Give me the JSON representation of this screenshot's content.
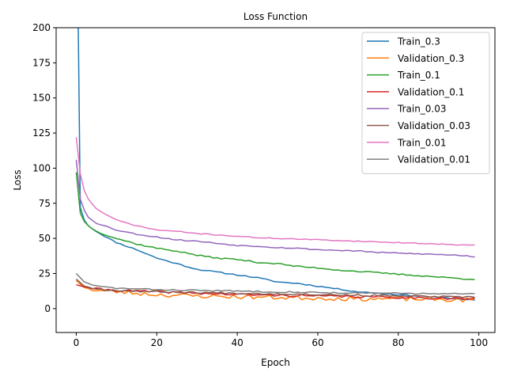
{
  "chart_data": {
    "type": "line",
    "title": "Loss Function",
    "xlabel": "Epoch",
    "ylabel": "Loss",
    "xlim": [
      -5,
      104
    ],
    "ylim": [
      -17,
      200
    ],
    "xticks": [
      0,
      20,
      40,
      60,
      80,
      100
    ],
    "yticks": [
      0,
      25,
      50,
      75,
      100,
      125,
      150,
      175,
      200
    ],
    "grid": false,
    "legend_position": "top-right",
    "x_start": 0,
    "x_end": 99,
    "series": [
      {
        "name": "Train_0.3",
        "color": "#1f77b4",
        "anchors": [
          [
            0,
            215
          ],
          [
            0.5,
            200
          ],
          [
            1,
            72
          ],
          [
            2,
            63
          ],
          [
            3,
            59
          ],
          [
            5,
            55
          ],
          [
            8,
            50
          ],
          [
            10,
            47
          ],
          [
            15,
            42
          ],
          [
            20,
            36
          ],
          [
            25,
            32
          ],
          [
            30,
            28
          ],
          [
            35,
            26
          ],
          [
            40,
            24
          ],
          [
            45,
            22
          ],
          [
            50,
            19
          ],
          [
            55,
            18
          ],
          [
            60,
            16
          ],
          [
            65,
            14
          ],
          [
            70,
            12
          ],
          [
            75,
            11
          ],
          [
            80,
            10
          ],
          [
            85,
            9
          ],
          [
            90,
            8
          ],
          [
            95,
            7
          ],
          [
            99,
            6
          ]
        ],
        "noise": 0.4,
        "seed": 11
      },
      {
        "name": "Validation_0.3",
        "color": "#ff7f0e",
        "anchors": [
          [
            0,
            20
          ],
          [
            2,
            15
          ],
          [
            5,
            13
          ],
          [
            10,
            12
          ],
          [
            20,
            10
          ],
          [
            30,
            9
          ],
          [
            40,
            8.5
          ],
          [
            50,
            8
          ],
          [
            60,
            7.5
          ],
          [
            70,
            7
          ],
          [
            80,
            7
          ],
          [
            90,
            6.5
          ],
          [
            99,
            6
          ]
        ],
        "noise": 1.6,
        "seed": 23
      },
      {
        "name": "Train_0.1",
        "color": "#2ca02c",
        "anchors": [
          [
            0,
            97
          ],
          [
            1,
            68
          ],
          [
            2,
            62
          ],
          [
            3,
            59
          ],
          [
            5,
            55
          ],
          [
            8,
            52
          ],
          [
            10,
            50
          ],
          [
            15,
            46
          ],
          [
            20,
            43
          ],
          [
            25,
            41
          ],
          [
            30,
            38
          ],
          [
            35,
            36
          ],
          [
            40,
            35
          ],
          [
            45,
            33
          ],
          [
            50,
            32
          ],
          [
            55,
            30
          ],
          [
            60,
            29
          ],
          [
            65,
            27.5
          ],
          [
            70,
            26.5
          ],
          [
            75,
            25.5
          ],
          [
            80,
            24.5
          ],
          [
            85,
            23.5
          ],
          [
            90,
            22.5
          ],
          [
            95,
            21.5
          ],
          [
            99,
            21
          ]
        ],
        "noise": 0.5,
        "seed": 37
      },
      {
        "name": "Validation_0.1",
        "color": "#d62728",
        "anchors": [
          [
            0,
            17
          ],
          [
            2,
            15.5
          ],
          [
            5,
            14
          ],
          [
            10,
            13
          ],
          [
            20,
            12
          ],
          [
            30,
            11
          ],
          [
            40,
            10
          ],
          [
            50,
            9.5
          ],
          [
            60,
            9
          ],
          [
            70,
            8.5
          ],
          [
            80,
            8
          ],
          [
            90,
            7.5
          ],
          [
            99,
            7
          ]
        ],
        "noise": 0.8,
        "seed": 41
      },
      {
        "name": "Train_0.03",
        "color": "#9467bd",
        "anchors": [
          [
            0,
            106
          ],
          [
            1,
            78
          ],
          [
            2,
            70
          ],
          [
            3,
            65
          ],
          [
            5,
            61
          ],
          [
            8,
            58
          ],
          [
            10,
            56
          ],
          [
            15,
            53
          ],
          [
            20,
            51
          ],
          [
            25,
            49
          ],
          [
            30,
            48
          ],
          [
            35,
            46.5
          ],
          [
            40,
            45
          ],
          [
            45,
            44.5
          ],
          [
            50,
            43.5
          ],
          [
            55,
            43
          ],
          [
            60,
            42
          ],
          [
            65,
            41.5
          ],
          [
            70,
            41
          ],
          [
            75,
            40
          ],
          [
            80,
            39.5
          ],
          [
            85,
            39
          ],
          [
            90,
            38.5
          ],
          [
            95,
            38
          ],
          [
            99,
            37
          ]
        ],
        "noise": 0.4,
        "seed": 53
      },
      {
        "name": "Validation_0.03",
        "color": "#8c564b",
        "anchors": [
          [
            0,
            21
          ],
          [
            2,
            16
          ],
          [
            5,
            14
          ],
          [
            10,
            13
          ],
          [
            20,
            12
          ],
          [
            30,
            11.5
          ],
          [
            40,
            11
          ],
          [
            50,
            10.5
          ],
          [
            60,
            10
          ],
          [
            70,
            9.5
          ],
          [
            80,
            9
          ],
          [
            90,
            8.5
          ],
          [
            99,
            8
          ]
        ],
        "noise": 0.6,
        "seed": 67
      },
      {
        "name": "Train_0.01",
        "color": "#e377c2",
        "anchors": [
          [
            0,
            122
          ],
          [
            1,
            96
          ],
          [
            2,
            84
          ],
          [
            3,
            78
          ],
          [
            5,
            71
          ],
          [
            8,
            66
          ],
          [
            10,
            63
          ],
          [
            15,
            59
          ],
          [
            20,
            56
          ],
          [
            25,
            55
          ],
          [
            30,
            53.5
          ],
          [
            35,
            52.5
          ],
          [
            40,
            51.5
          ],
          [
            45,
            50.5
          ],
          [
            50,
            50
          ],
          [
            55,
            49.5
          ],
          [
            60,
            49
          ],
          [
            65,
            48.5
          ],
          [
            70,
            48
          ],
          [
            75,
            47.5
          ],
          [
            80,
            47
          ],
          [
            85,
            46.5
          ],
          [
            90,
            46
          ],
          [
            95,
            45.5
          ],
          [
            99,
            45.5
          ]
        ],
        "noise": 0.3,
        "seed": 71
      },
      {
        "name": "Validation_0.01",
        "color": "#7f7f7f",
        "anchors": [
          [
            0,
            25
          ],
          [
            2,
            19
          ],
          [
            5,
            16
          ],
          [
            10,
            14.5
          ],
          [
            20,
            13.5
          ],
          [
            30,
            13
          ],
          [
            40,
            12.5
          ],
          [
            50,
            12
          ],
          [
            60,
            11.5
          ],
          [
            70,
            11
          ],
          [
            80,
            11
          ],
          [
            90,
            10.5
          ],
          [
            99,
            10.5
          ]
        ],
        "noise": 0.5,
        "seed": 83
      }
    ]
  }
}
